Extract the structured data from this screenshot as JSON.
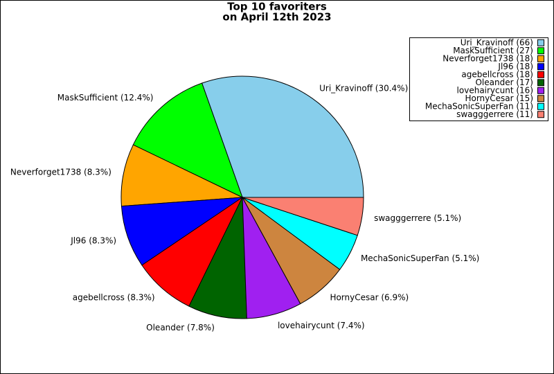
{
  "chart_data": {
    "type": "pie",
    "title": "Top 10 favoriters",
    "subtitle": "on April 12th 2023",
    "values": [
      66,
      27,
      18,
      18,
      18,
      17,
      16,
      15,
      11,
      11
    ],
    "slice_labels": [
      "Uri_Kravinoff (30.4%)",
      "MaskSufficient (12.4%)",
      "Neverforget1738 (8.3%)",
      "Jl96 (8.3%)",
      "agebellcross (8.3%)",
      "Oleander (7.8%)",
      "lovehairycunt (7.4%)",
      "HornyCesar (6.9%)",
      "MechaSonicSuperFan (5.1%)",
      "swagggerrere (5.1%)"
    ],
    "legend_labels": [
      "Uri_Kravinoff (66)",
      "MaskSufficient (27)",
      "Neverforget1738 (18)",
      "Jl96 (18)",
      "agebellcross (18)",
      "Oleander (17)",
      "lovehairycunt (16)",
      "HornyCesar (15)",
      "MechaSonicSuperFan (11)",
      "swagggerrere (11)"
    ],
    "colors": [
      "#87ceeb",
      "#00ff00",
      "#ffa500",
      "#0000ff",
      "#ff0000",
      "#006400",
      "#a020f0",
      "#cd853f",
      "#00ffff",
      "#fa8072"
    ],
    "legend": "upper right"
  }
}
